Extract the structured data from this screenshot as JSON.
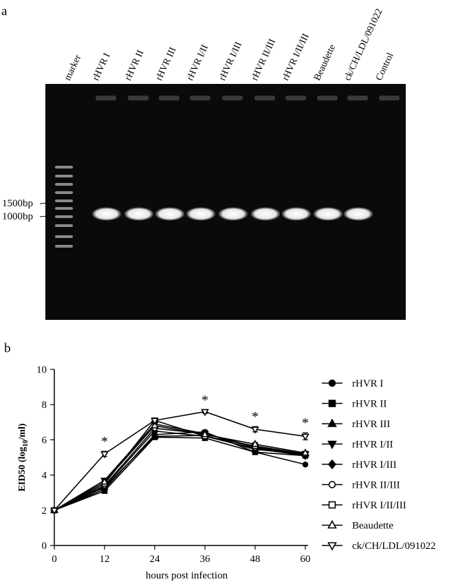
{
  "panels": {
    "a": "a",
    "b": "b"
  },
  "gel": {
    "lanes": [
      "marker",
      "rHVR I",
      "rHVR II",
      "rHVR III",
      "rHVR I/II",
      "rHVR I/III",
      "rHVR II/III",
      "rHVR I/II/III",
      "Beaudette",
      "ck/CH/LDL/091022",
      "Control"
    ],
    "band_present": [
      false,
      true,
      true,
      true,
      true,
      true,
      true,
      true,
      true,
      true,
      false
    ],
    "size_labels": [
      "1500bp",
      "1000bp"
    ],
    "background_color": "#0a0a0a",
    "band_color": "#ffffff"
  },
  "chart_data": {
    "type": "line",
    "xlabel": "hours post infection",
    "ylabel": "EID50 (log10/ml)",
    "x": [
      0,
      12,
      24,
      36,
      48,
      60
    ],
    "xlim": [
      0,
      60
    ],
    "ylim": [
      0,
      10
    ],
    "xticks": [
      "0",
      "12",
      "24",
      "36",
      "48",
      "60"
    ],
    "yticks": [
      "0",
      "2",
      "4",
      "6",
      "8",
      "10"
    ],
    "legend_position": "right",
    "grid": false,
    "series": [
      {
        "name": "rHVR I",
        "marker": "circle-filled",
        "values": [
          2.0,
          3.2,
          6.3,
          6.45,
          5.3,
          4.6
        ],
        "errors": [
          0,
          0.1,
          0.1,
          0.1,
          0.1,
          0
        ]
      },
      {
        "name": "rHVR II",
        "marker": "square-filled",
        "values": [
          2.0,
          3.1,
          6.15,
          6.1,
          5.3,
          5.1
        ],
        "errors": [
          0,
          0.1,
          0.1,
          0.1,
          0.1,
          0.1
        ]
      },
      {
        "name": "rHVR III",
        "marker": "triangle-up-filled",
        "values": [
          2.0,
          3.3,
          6.2,
          6.25,
          5.45,
          5.2
        ],
        "errors": [
          0,
          0.1,
          0.1,
          0.1,
          0.1,
          0.1
        ]
      },
      {
        "name": "rHVR I/II",
        "marker": "triangle-down-filled",
        "values": [
          2.0,
          3.7,
          6.9,
          6.35,
          5.6,
          5.2
        ],
        "errors": [
          0,
          0.1,
          0.1,
          0.1,
          0.1,
          0.1
        ]
      },
      {
        "name": "rHVR I/III",
        "marker": "diamond-filled",
        "values": [
          2.0,
          3.35,
          6.5,
          6.2,
          5.5,
          5.1
        ],
        "errors": [
          0,
          0.1,
          0.1,
          0.1,
          0.1,
          0.1
        ]
      },
      {
        "name": "rHVR II/III",
        "marker": "circle-open",
        "values": [
          2.0,
          3.4,
          6.65,
          6.35,
          5.55,
          5.15
        ],
        "errors": [
          0,
          0.1,
          0.1,
          0.1,
          0.1,
          0.1
        ]
      },
      {
        "name": "rHVR I/II/III",
        "marker": "square-open",
        "values": [
          2.0,
          3.5,
          7.1,
          6.2,
          5.65,
          5.2
        ],
        "errors": [
          0,
          0.1,
          0.1,
          0.1,
          0.1,
          0.1
        ]
      },
      {
        "name": "Beaudette",
        "marker": "triangle-up-open",
        "values": [
          2.0,
          3.6,
          6.8,
          6.3,
          5.75,
          5.25
        ],
        "errors": [
          0,
          0.1,
          0.1,
          0.1,
          0.1,
          0.1
        ]
      },
      {
        "name": "ck/CH/LDL/091022",
        "marker": "triangle-down-open",
        "values": [
          2.0,
          5.2,
          7.1,
          7.6,
          6.6,
          6.2
        ],
        "errors": [
          0,
          0.15,
          0.1,
          0.1,
          0.15,
          0.2
        ]
      }
    ],
    "annotations": [
      {
        "text": "*",
        "x": 12
      },
      {
        "text": "*",
        "x": 36
      },
      {
        "text": "*",
        "x": 48
      },
      {
        "text": "*",
        "x": 60
      }
    ]
  }
}
